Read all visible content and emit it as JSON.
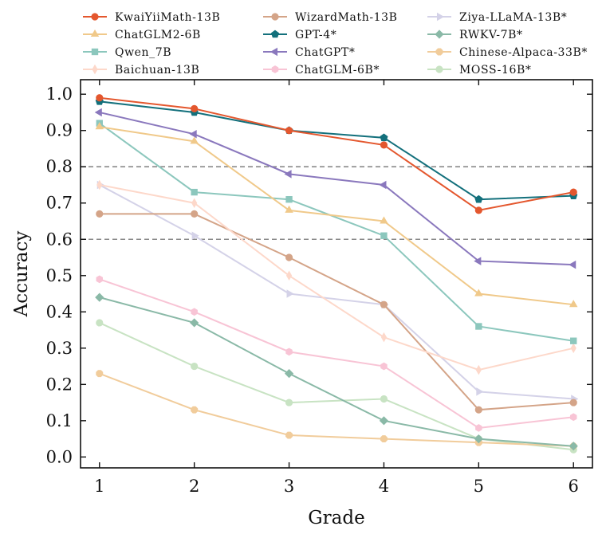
{
  "chart_data": {
    "type": "line",
    "title": "",
    "xlabel": "Grade",
    "ylabel": "Accuracy",
    "x": [
      1,
      2,
      3,
      4,
      5,
      6
    ],
    "xlim": [
      0.8,
      6.2
    ],
    "ylim": [
      -0.03,
      1.04
    ],
    "xticks": [
      "1",
      "2",
      "3",
      "4",
      "5",
      "6"
    ],
    "yticks": [
      "0.0",
      "0.1",
      "0.2",
      "0.3",
      "0.4",
      "0.5",
      "0.6",
      "0.7",
      "0.8",
      "0.9",
      "1.0"
    ],
    "reference_lines": [
      0.8,
      0.6
    ],
    "legend_position": "top",
    "series": [
      {
        "name": "KwaiYiiMath-13B",
        "color": "#e4572e",
        "marker": "circle",
        "values": [
          0.99,
          0.96,
          0.9,
          0.86,
          0.68,
          0.73
        ]
      },
      {
        "name": "ChatGLM2-6B",
        "color": "#f0c98a",
        "marker": "triangle-up",
        "values": [
          0.91,
          0.87,
          0.68,
          0.65,
          0.45,
          0.42
        ]
      },
      {
        "name": "Qwen_7B",
        "color": "#8cc7bd",
        "marker": "square",
        "values": [
          0.92,
          0.73,
          0.71,
          0.61,
          0.36,
          0.32
        ]
      },
      {
        "name": "Baichuan-13B",
        "color": "#fdd8ca",
        "marker": "diamond-thin",
        "values": [
          0.75,
          0.7,
          0.5,
          0.33,
          0.24,
          0.3
        ]
      },
      {
        "name": "WizardMath-13B",
        "color": "#d4a488",
        "marker": "circle",
        "values": [
          0.67,
          0.67,
          0.55,
          0.42,
          0.13,
          0.15
        ]
      },
      {
        "name": "GPT-4*",
        "color": "#13707c",
        "marker": "pentagon",
        "values": [
          0.98,
          0.95,
          0.9,
          0.88,
          0.71,
          0.72
        ]
      },
      {
        "name": "ChatGPT*",
        "color": "#8a78bd",
        "marker": "triangle-left",
        "values": [
          0.95,
          0.89,
          0.78,
          0.75,
          0.54,
          0.53
        ]
      },
      {
        "name": "ChatGLM-6B*",
        "color": "#f8c4d5",
        "marker": "hexagon",
        "values": [
          0.49,
          0.4,
          0.29,
          0.25,
          0.08,
          0.11
        ]
      },
      {
        "name": "Ziya-LLaMA-13B*",
        "color": "#d4d2e8",
        "marker": "triangle-right",
        "values": [
          0.75,
          0.61,
          0.45,
          0.42,
          0.18,
          0.16
        ]
      },
      {
        "name": "RWKV-7B*",
        "color": "#8ab9a7",
        "marker": "diamond",
        "values": [
          0.44,
          0.37,
          0.23,
          0.1,
          0.05,
          0.03
        ]
      },
      {
        "name": "Chinese-Alpaca-33B*",
        "color": "#f1cc9b",
        "marker": "octagon",
        "values": [
          0.23,
          0.13,
          0.06,
          0.05,
          0.04,
          0.03
        ]
      },
      {
        "name": "MOSS-16B*",
        "color": "#c8e3c3",
        "marker": "circle",
        "values": [
          0.37,
          0.25,
          0.15,
          0.16,
          0.05,
          0.02
        ]
      }
    ]
  }
}
